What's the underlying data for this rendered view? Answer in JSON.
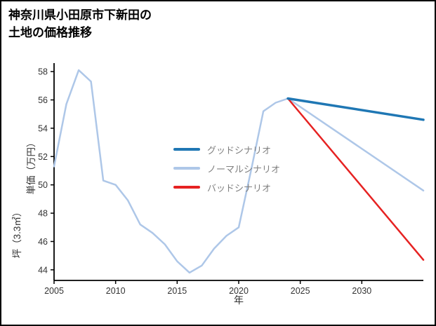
{
  "chart_data": {
    "type": "line",
    "title": "神奈川県小田原市下新田の土地の価格推移",
    "title_lines": [
      "神奈川県小田原市下新田の",
      "土地の価格推移"
    ],
    "xlabel": "年",
    "ylabel": "坪（3.3㎡）単価（万円）",
    "ylabel_lines": [
      "坪（3.3㎡）",
      "単価（万円）"
    ],
    "xlim": [
      2005,
      2035
    ],
    "ylim": [
      43.25,
      58.6
    ],
    "x_ticks": [
      2005,
      2010,
      2015,
      2020,
      2025,
      2030
    ],
    "y_ticks": [
      44,
      46,
      48,
      50,
      52,
      54,
      56,
      58
    ],
    "grid": false,
    "axis_color": "#000000",
    "legend_position": "inside-center-left",
    "legend": [
      {
        "label": "グッドシナリオ",
        "color": "#1f77b4"
      },
      {
        "label": "ノーマルシナリオ",
        "color": "#aec7e8"
      },
      {
        "label": "バッドシナリオ",
        "color": "#e62222"
      }
    ],
    "series": [
      {
        "name": "history-normal",
        "color": "#aec7e8",
        "width": 2.5,
        "x": [
          2005,
          2006,
          2007,
          2008,
          2009,
          2010,
          2011,
          2012,
          2013,
          2014,
          2015,
          2016,
          2017,
          2018,
          2019,
          2020,
          2021,
          2022,
          2023,
          2024
        ],
        "y": [
          51.3,
          55.7,
          58.1,
          57.3,
          50.3,
          50.0,
          48.9,
          47.2,
          46.6,
          45.8,
          44.6,
          43.8,
          44.3,
          45.5,
          46.4,
          47.0,
          51.0,
          55.2,
          55.8,
          56.1
        ]
      },
      {
        "name": "forecast-normal",
        "color": "#aec7e8",
        "width": 2.5,
        "x": [
          2024,
          2035
        ],
        "y": [
          56.1,
          49.6
        ]
      },
      {
        "name": "forecast-bad",
        "color": "#e62222",
        "width": 2.5,
        "x": [
          2024,
          2035
        ],
        "y": [
          56.1,
          44.7
        ]
      },
      {
        "name": "forecast-good",
        "color": "#1f77b4",
        "width": 3.5,
        "x": [
          2024,
          2035
        ],
        "y": [
          56.1,
          54.6
        ]
      }
    ]
  }
}
